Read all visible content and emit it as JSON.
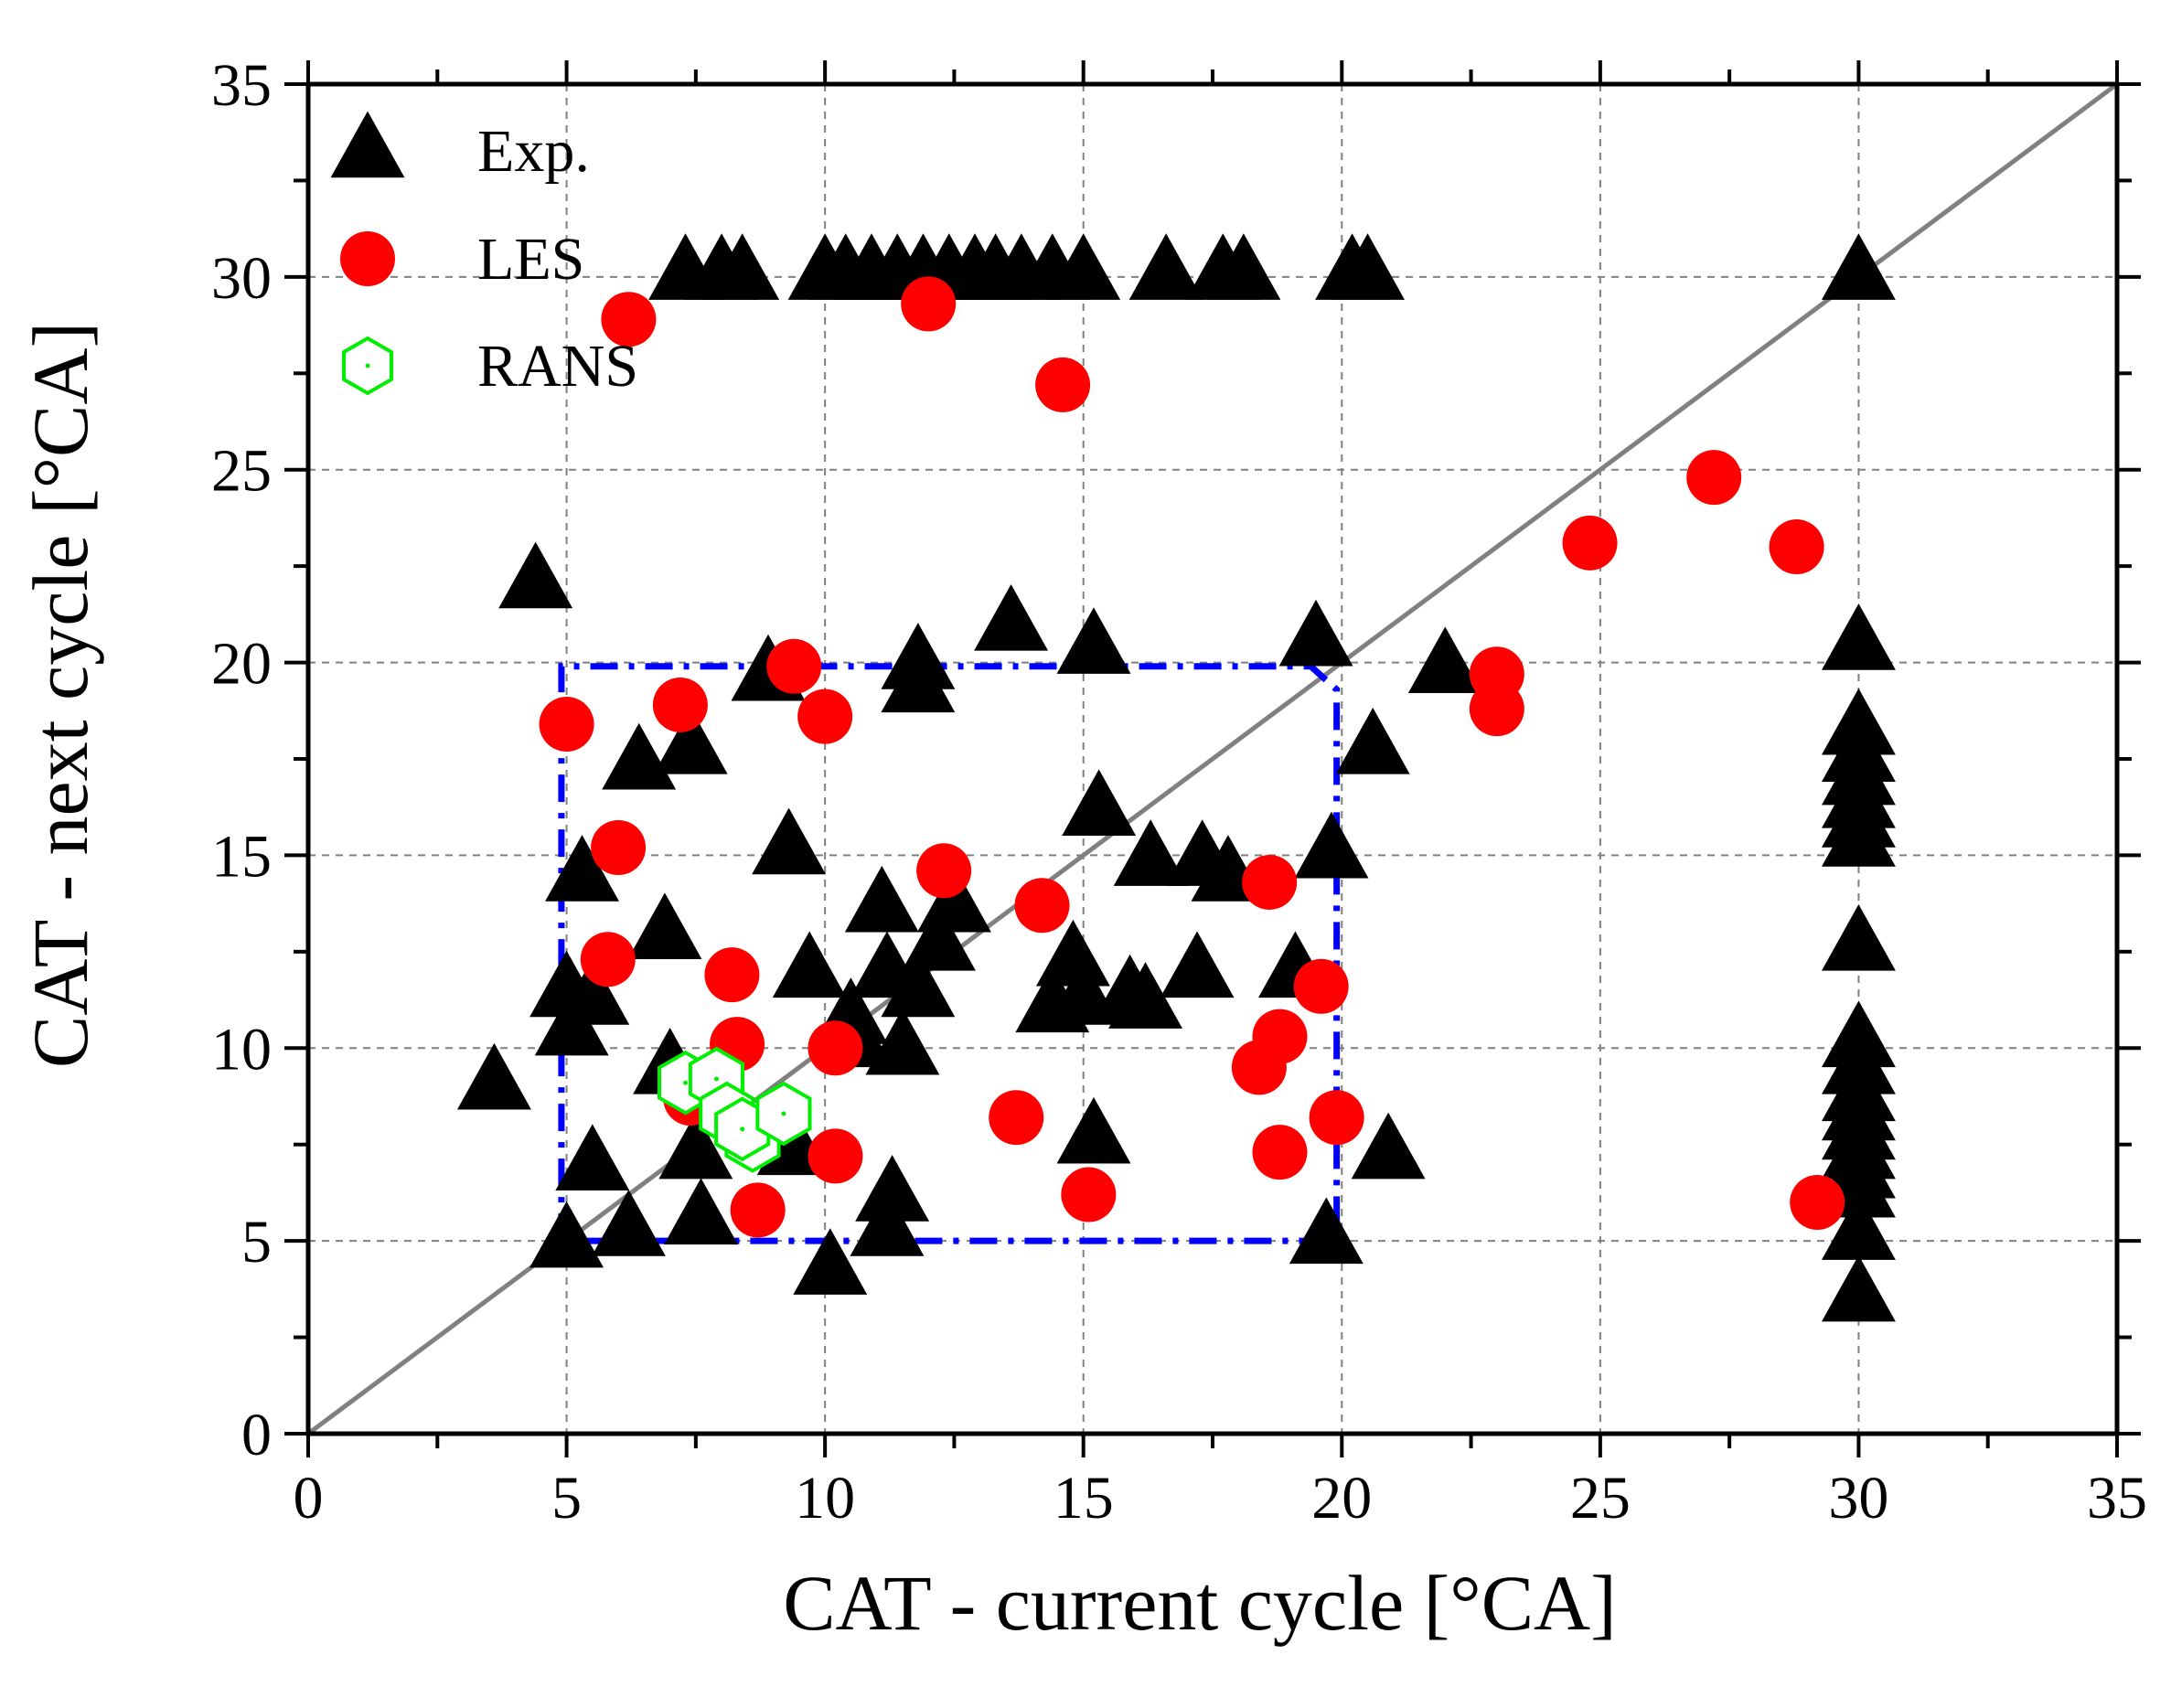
{
  "chart_data": {
    "type": "scatter",
    "title": "",
    "xlabel": "CAT - current cycle [°CA]",
    "ylabel": "CAT - next cycle [°CA]",
    "xlim": [
      0,
      35
    ],
    "ylim": [
      0,
      35
    ],
    "xticks": [
      "0",
      "5",
      "10",
      "15",
      "20",
      "25",
      "30",
      "35"
    ],
    "yticks": [
      "0",
      "5",
      "10",
      "15",
      "20",
      "25",
      "30",
      "35"
    ],
    "grid": true,
    "legend_position": "top-left",
    "colors": {
      "exp": "#000000",
      "les": "#ff0000",
      "rans": "#00ee00",
      "box": "#0000ff",
      "diagonal": "#808080",
      "grid": "#808080"
    },
    "reference_line": {
      "label": "y = x",
      "from": [
        0,
        0
      ],
      "to": [
        35,
        35
      ]
    },
    "region_box": {
      "points": [
        [
          4.9,
          5.0
        ],
        [
          4.9,
          19.9
        ],
        [
          19.4,
          19.9
        ],
        [
          19.9,
          19.3
        ],
        [
          19.9,
          5.0
        ],
        [
          4.9,
          5.0
        ]
      ]
    },
    "series": [
      {
        "name": "Exp.",
        "marker": "triangle",
        "points": [
          [
            7.3,
            30.1
          ],
          [
            8.0,
            30.1
          ],
          [
            8.4,
            30.1
          ],
          [
            10.0,
            30.1
          ],
          [
            10.4,
            30.1
          ],
          [
            10.9,
            30.1
          ],
          [
            11.4,
            30.1
          ],
          [
            11.9,
            30.1
          ],
          [
            12.4,
            30.1
          ],
          [
            12.9,
            30.1
          ],
          [
            13.3,
            30.1
          ],
          [
            13.8,
            30.1
          ],
          [
            14.4,
            30.1
          ],
          [
            15.0,
            30.1
          ],
          [
            16.6,
            30.1
          ],
          [
            17.7,
            30.1
          ],
          [
            18.1,
            30.1
          ],
          [
            20.2,
            30.1
          ],
          [
            20.5,
            30.1
          ],
          [
            30.0,
            30.1
          ],
          [
            4.4,
            22.1
          ],
          [
            13.6,
            21.0
          ],
          [
            15.2,
            20.4
          ],
          [
            19.5,
            20.6
          ],
          [
            22.0,
            19.9
          ],
          [
            11.8,
            20.0
          ],
          [
            11.8,
            19.4
          ],
          [
            8.9,
            19.7
          ],
          [
            7.4,
            17.8
          ],
          [
            6.4,
            17.4
          ],
          [
            20.6,
            17.8
          ],
          [
            15.3,
            16.2
          ],
          [
            9.3,
            15.2
          ],
          [
            16.3,
            14.9
          ],
          [
            17.3,
            14.9
          ],
          [
            17.8,
            14.5
          ],
          [
            19.8,
            15.1
          ],
          [
            5.3,
            14.5
          ],
          [
            11.1,
            13.7
          ],
          [
            12.5,
            13.7
          ],
          [
            12.2,
            12.7
          ],
          [
            6.9,
            13.0
          ],
          [
            9.7,
            12.0
          ],
          [
            11.2,
            12.0
          ],
          [
            11.8,
            11.5
          ],
          [
            14.8,
            12.3
          ],
          [
            14.4,
            11.1
          ],
          [
            15.0,
            11.3
          ],
          [
            15.9,
            11.4
          ],
          [
            16.2,
            11.2
          ],
          [
            17.2,
            12.0
          ],
          [
            19.1,
            12.0
          ],
          [
            5.0,
            11.5
          ],
          [
            5.5,
            11.3
          ],
          [
            5.1,
            10.5
          ],
          [
            10.5,
            10.8
          ],
          [
            10.6,
            10.2
          ],
          [
            11.5,
            10.0
          ],
          [
            7.0,
            9.5
          ],
          [
            3.6,
            9.1
          ],
          [
            7.5,
            7.3
          ],
          [
            9.4,
            7.4
          ],
          [
            15.2,
            7.7
          ],
          [
            20.9,
            7.3
          ],
          [
            5.5,
            7.0
          ],
          [
            11.3,
            6.2
          ],
          [
            11.2,
            5.3
          ],
          [
            5.0,
            5.0
          ],
          [
            6.2,
            5.3
          ],
          [
            7.6,
            5.6
          ],
          [
            10.1,
            4.3
          ],
          [
            19.7,
            5.1
          ],
          [
            30.0,
            20.5
          ],
          [
            30.0,
            18.3
          ],
          [
            30.0,
            17.6
          ],
          [
            30.0,
            17.0
          ],
          [
            30.0,
            16.4
          ],
          [
            30.0,
            15.9
          ],
          [
            30.0,
            15.4
          ],
          [
            30.0,
            12.7
          ],
          [
            30.0,
            10.2
          ],
          [
            30.0,
            9.5
          ],
          [
            30.0,
            8.8
          ],
          [
            30.0,
            8.3
          ],
          [
            30.0,
            7.8
          ],
          [
            30.0,
            7.3
          ],
          [
            30.0,
            6.8
          ],
          [
            30.0,
            6.3
          ],
          [
            30.0,
            5.2
          ],
          [
            30.0,
            3.6
          ]
        ]
      },
      {
        "name": "LES",
        "marker": "circle",
        "points": [
          [
            6.2,
            28.9
          ],
          [
            12.0,
            29.3
          ],
          [
            14.6,
            27.2
          ],
          [
            24.8,
            23.1
          ],
          [
            27.2,
            24.8
          ],
          [
            28.8,
            23.0
          ],
          [
            9.4,
            19.9
          ],
          [
            23.0,
            19.7
          ],
          [
            23.0,
            18.8
          ],
          [
            7.2,
            18.9
          ],
          [
            10.0,
            18.6
          ],
          [
            5.0,
            18.4
          ],
          [
            6.0,
            15.2
          ],
          [
            12.3,
            14.6
          ],
          [
            18.6,
            14.3
          ],
          [
            14.2,
            13.7
          ],
          [
            5.8,
            12.3
          ],
          [
            8.2,
            11.9
          ],
          [
            19.6,
            11.6
          ],
          [
            8.3,
            10.1
          ],
          [
            10.2,
            10.0
          ],
          [
            18.8,
            10.3
          ],
          [
            18.4,
            9.5
          ],
          [
            7.4,
            8.7
          ],
          [
            13.7,
            8.2
          ],
          [
            19.9,
            8.2
          ],
          [
            10.2,
            7.2
          ],
          [
            18.8,
            7.3
          ],
          [
            15.1,
            6.2
          ],
          [
            8.7,
            5.8
          ],
          [
            29.2,
            6.0
          ]
        ]
      },
      {
        "name": "RANS",
        "marker": "hexagon",
        "points": [
          [
            7.3,
            9.1
          ],
          [
            7.9,
            9.2
          ],
          [
            8.1,
            8.3
          ],
          [
            8.6,
            7.6
          ],
          [
            8.4,
            7.9
          ],
          [
            9.2,
            8.3
          ]
        ]
      }
    ],
    "legend": [
      {
        "label": "Exp.",
        "marker": "triangle"
      },
      {
        "label": "LES",
        "marker": "circle"
      },
      {
        "label": "RANS",
        "marker": "hexagon"
      }
    ]
  }
}
